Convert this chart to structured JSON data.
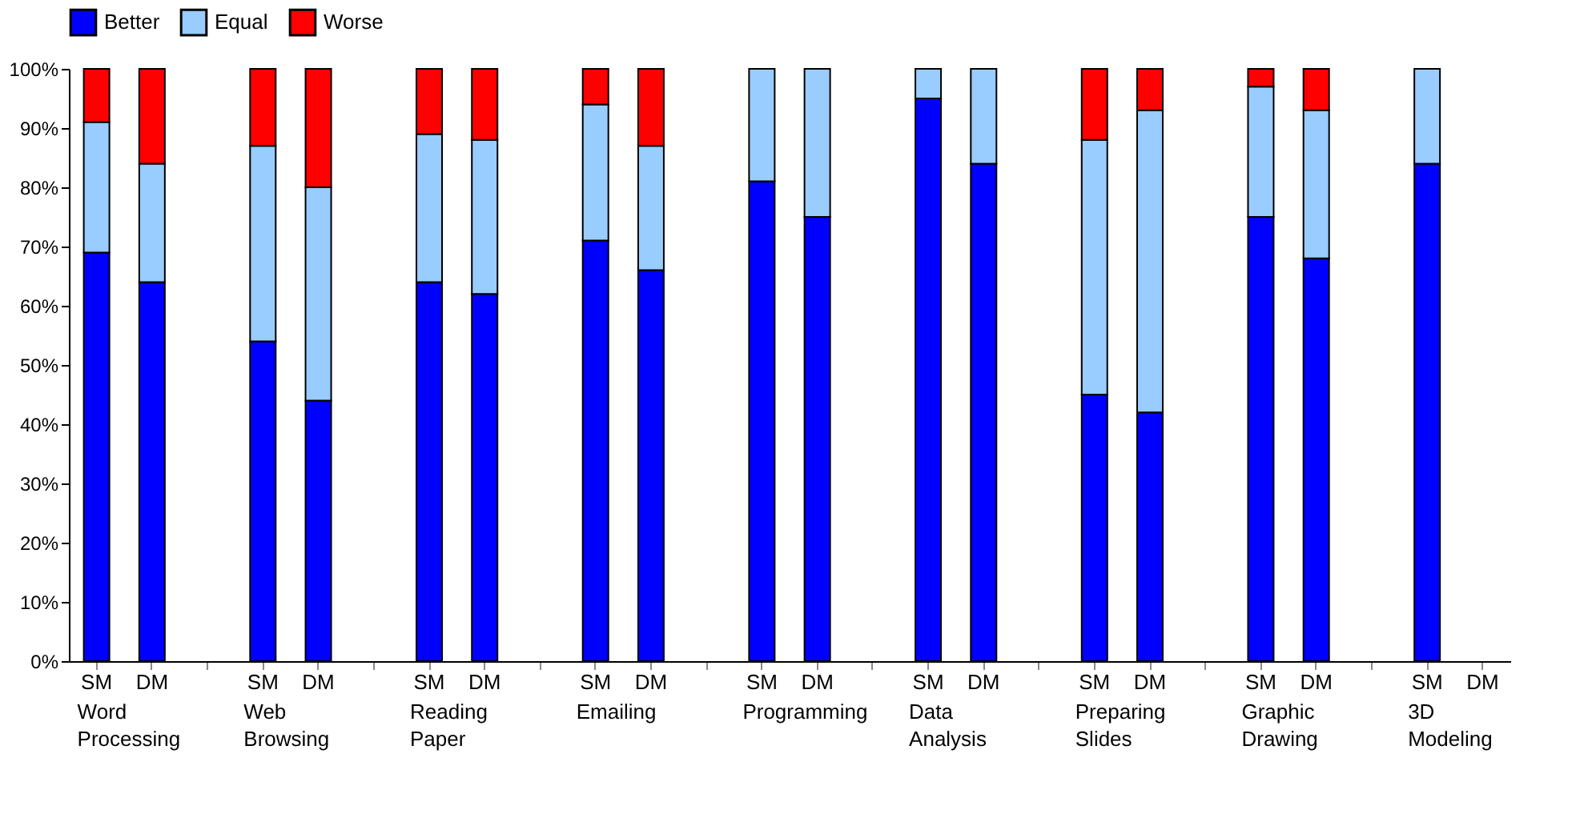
{
  "chart_data": {
    "type": "bar",
    "stacked": true,
    "legend": "top",
    "grid": false,
    "categories": [
      "SM",
      "DM",
      "SM",
      "DM",
      "SM",
      "DM",
      "SM",
      "DM",
      "SM",
      "DM",
      "SM",
      "DM",
      "SM",
      "DM",
      "SM",
      "DM",
      "SM",
      "DM"
    ],
    "series": [
      {
        "name": "Better",
        "color": "#0000ff",
        "values": [
          69,
          64,
          54,
          44,
          64,
          62,
          71,
          66,
          81,
          75,
          95,
          84,
          45,
          42,
          75,
          68,
          84,
          null
        ]
      },
      {
        "name": "Equal",
        "color": "#99ccff",
        "values": [
          22,
          20,
          33,
          36,
          25,
          26,
          23,
          21,
          19,
          25,
          5,
          16,
          43,
          51,
          22,
          25,
          16,
          null
        ]
      },
      {
        "name": "Worse",
        "color": "#ff0000",
        "values": [
          9,
          16,
          13,
          20,
          11,
          12,
          6,
          13,
          null,
          null,
          null,
          null,
          12,
          7,
          3,
          7,
          null,
          null
        ]
      }
    ],
    "ylim": [
      0,
      100
    ],
    "yticks": [
      {
        "value": 0,
        "label": "0%"
      },
      {
        "value": 10,
        "label": "10%"
      },
      {
        "value": 20,
        "label": "20%"
      },
      {
        "value": 30,
        "label": "30%"
      },
      {
        "value": 40,
        "label": "40%"
      },
      {
        "value": 50,
        "label": "50%"
      },
      {
        "value": 60,
        "label": "60%"
      },
      {
        "value": 70,
        "label": "70%"
      },
      {
        "value": 80,
        "label": "80%"
      },
      {
        "value": 90,
        "label": "90%"
      },
      {
        "value": 100,
        "label": "100%"
      }
    ],
    "annotations": [
      "Word Processing",
      "Web Browsing",
      "Reading Paper",
      "Emailing",
      "Programming",
      "Data Analysis",
      "Preparing Slides",
      "Graphic Drawing",
      "3D Modeling"
    ]
  }
}
